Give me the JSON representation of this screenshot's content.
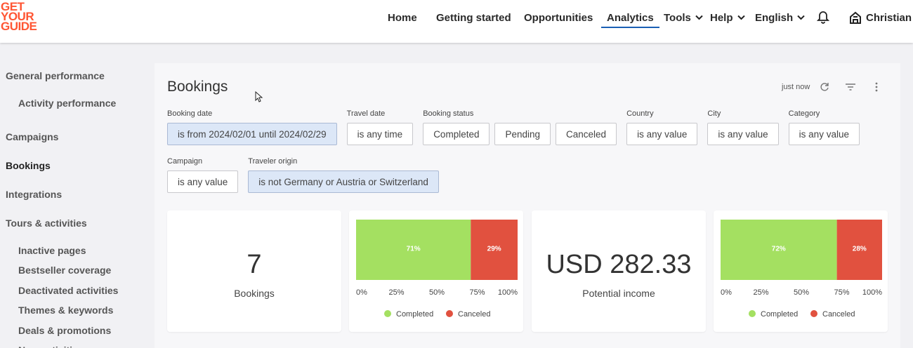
{
  "logo": {
    "lines": [
      "GET",
      "YOUR",
      "GUIDE"
    ]
  },
  "nav": {
    "items": [
      {
        "label": "Home",
        "menu": false
      },
      {
        "label": "Getting started",
        "menu": false
      },
      {
        "label": "Opportunities",
        "menu": false
      },
      {
        "label": "Analytics",
        "menu": false
      },
      {
        "label": "Tools",
        "menu": true
      },
      {
        "label": "Help",
        "menu": true
      },
      {
        "label": "English",
        "menu": true
      }
    ],
    "active": 3,
    "user": "Christian"
  },
  "sidebar": {
    "items": [
      {
        "label": "General performance",
        "level": 1
      },
      {
        "label": "Activity performance",
        "level": 2
      },
      {
        "label": "Campaigns",
        "level": 1
      },
      {
        "label": "Bookings",
        "level": 1
      },
      {
        "label": "Integrations",
        "level": 1
      },
      {
        "label": "Tours & activities",
        "level": 1
      },
      {
        "label": "Inactive pages",
        "level": 2
      },
      {
        "label": "Bestseller coverage",
        "level": 2
      },
      {
        "label": "Deactivated activities",
        "level": 2
      },
      {
        "label": "Themes & keywords",
        "level": 2
      },
      {
        "label": "Deals & promotions",
        "level": 2
      },
      {
        "label": "New activities",
        "level": 2
      }
    ],
    "selected": 3
  },
  "panel": {
    "title": "Bookings",
    "updated": "just now"
  },
  "filters": {
    "rows": [
      [
        {
          "label": "Booking date",
          "values": [
            "is from 2024/02/01 until 2024/02/29"
          ],
          "highlighted": true
        },
        {
          "label": "Travel date",
          "values": [
            "is any time"
          ],
          "highlighted": false
        },
        {
          "label": "Booking status",
          "values": [
            "Completed",
            "Pending",
            "Canceled"
          ],
          "highlighted": false
        },
        {
          "label": "Country",
          "values": [
            "is any value"
          ],
          "highlighted": false
        },
        {
          "label": "City",
          "values": [
            "is any value"
          ],
          "highlighted": false
        },
        {
          "label": "Category",
          "values": [
            "is any value"
          ],
          "highlighted": false
        }
      ],
      [
        {
          "label": "Campaign",
          "values": [
            "is any value"
          ],
          "highlighted": false
        },
        {
          "label": "Traveler origin",
          "values": [
            "is not Germany or Austria or Switzerland"
          ],
          "highlighted": true
        }
      ]
    ]
  },
  "kpis": [
    {
      "value": "7",
      "label": "Bookings"
    },
    {
      "value": "USD 282.33",
      "label": "Potential income"
    }
  ],
  "chart_data": [
    {
      "type": "bar",
      "orientation": "horizontal",
      "stacked": true,
      "categories": [
        null
      ],
      "series": [
        {
          "name": "Completed",
          "color": "#a4e061",
          "values": [
            71
          ],
          "value_labels": [
            "71%"
          ]
        },
        {
          "name": "Canceled",
          "color": "#e1513f",
          "values": [
            29
          ],
          "value_labels": [
            "29%"
          ]
        }
      ],
      "xlim": [
        0,
        100
      ],
      "xticks": [
        {
          "value": 0,
          "label": "0%"
        },
        {
          "value": 25,
          "label": "25%"
        },
        {
          "value": 50,
          "label": "50%"
        },
        {
          "value": 75,
          "label": "75%"
        },
        {
          "value": 100,
          "label": "100%"
        }
      ],
      "legend": "bottom"
    },
    {
      "type": "bar",
      "orientation": "horizontal",
      "stacked": true,
      "categories": [
        null
      ],
      "series": [
        {
          "name": "Completed",
          "color": "#a4e061",
          "values": [
            72
          ],
          "value_labels": [
            "72%"
          ]
        },
        {
          "name": "Canceled",
          "color": "#e1513f",
          "values": [
            28
          ],
          "value_labels": [
            "28%"
          ]
        }
      ],
      "xlim": [
        0,
        100
      ],
      "xticks": [
        {
          "value": 0,
          "label": "0%"
        },
        {
          "value": 25,
          "label": "25%"
        },
        {
          "value": 50,
          "label": "50%"
        },
        {
          "value": 75,
          "label": "75%"
        },
        {
          "value": 100,
          "label": "100%"
        }
      ],
      "legend": "bottom"
    }
  ]
}
